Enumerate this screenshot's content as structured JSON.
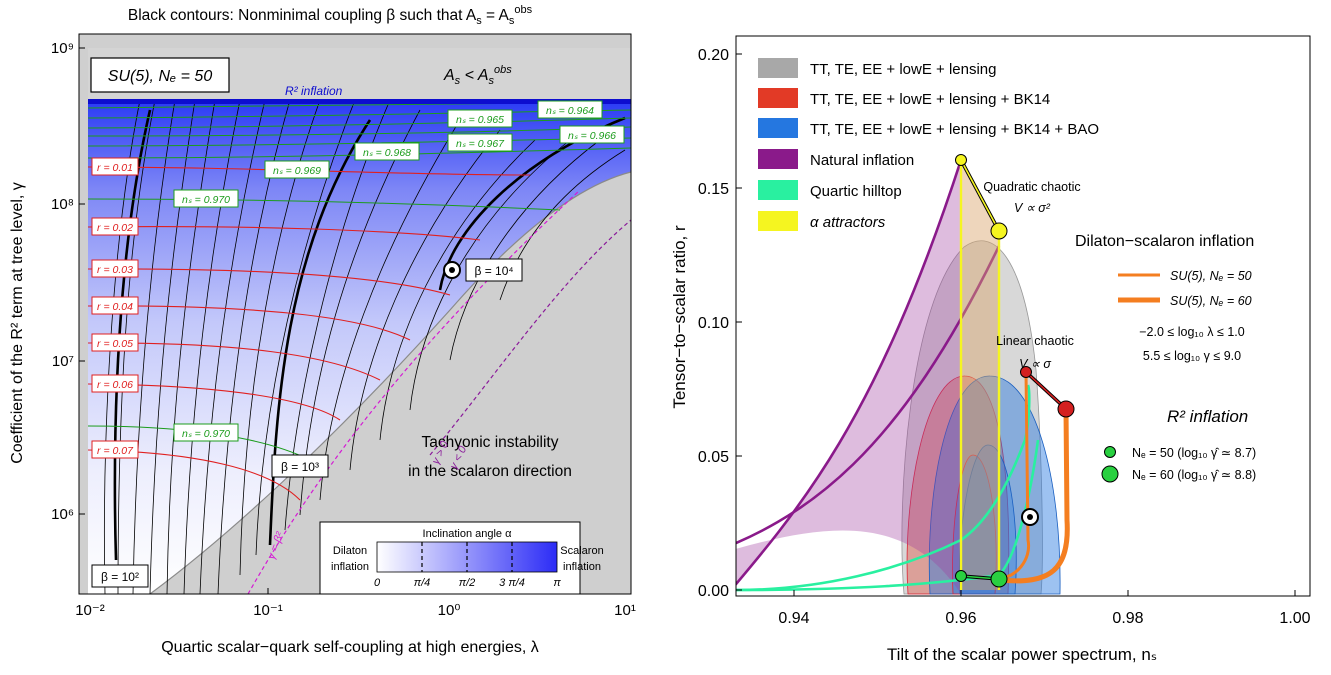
{
  "left": {
    "title": "Black contours: Nonminimal coupling β such that A",
    "title_sub": "s",
    "title_eq": " = A",
    "title_sub2": "s",
    "title_sup": "obs",
    "xlabel": "Quartic scalar−quark self-coupling at high energies, λ",
    "ylabel": "Coefficient of the  R² term  at tree level,  γ",
    "xticks": [
      "10⁻²",
      "10⁻¹",
      "10⁰",
      "10¹"
    ],
    "yticks": [
      "10⁶",
      "10⁷",
      "10⁸",
      "10⁹"
    ],
    "model_box": "SU(5), Nₑ = 50",
    "region_top": "A",
    "region_top_rest": " < A",
    "region_top_sup": "obs",
    "r2_label": "R² inflation",
    "tachyon_line1": "Tachyonic instability",
    "tachyon_line2": "in the scalaron direction",
    "beta_labels": [
      "β = 10²",
      "β = 10³",
      "β = 10⁴"
    ],
    "r_labels": [
      "r = 0.01",
      "r = 0.02",
      "r = 0.03",
      "r = 0.04",
      "r = 0.05",
      "r = 0.06",
      "r = 0.07"
    ],
    "ns_labels": [
      "nₛ = 0.964",
      "nₛ = 0.965",
      "nₛ = 0.966",
      "nₛ = 0.967",
      "nₛ = 0.968",
      "nₛ = 0.969",
      "nₛ = 0.970",
      "nₛ = 0.970"
    ],
    "gamma_pos": "γ > 0",
    "gamma_neg": "γ < 0",
    "gamma_beta": "γ = β²",
    "colorbar": {
      "title": "Inclination angle α",
      "left_line1": "Dilaton",
      "left_line2": "inflation",
      "right_line1": "Scalaron",
      "right_line2": "inflation",
      "ticks": [
        "0",
        "π/4",
        "π/2",
        "3 π/4",
        "π"
      ]
    }
  },
  "right": {
    "xlabel": "Tilt of the scalar power spectrum,  nₛ",
    "ylabel": "Tensor−to−scalar  ratio,  r",
    "xticks": [
      "0.94",
      "0.96",
      "0.98",
      "1.00"
    ],
    "yticks": [
      "0.00",
      "0.05",
      "0.10",
      "0.15",
      "0.20"
    ],
    "legend": [
      {
        "label": "TT, TE, EE + lowE + lensing",
        "color": "#a8a8a8"
      },
      {
        "label": "TT, TE, EE + lowE + lensing + BK14",
        "color": "#e23a26"
      },
      {
        "label": "TT, TE, EE + lowE + lensing + BK14 + BAO",
        "color": "#2577e0"
      },
      {
        "label": "Natural inflation",
        "color": "#8a1a8a"
      },
      {
        "label": "Quartic hilltop",
        "color": "#29f0a0"
      },
      {
        "label": "α attractors",
        "color": "#f5f520"
      }
    ],
    "quad_title": "Quadratic chaotic",
    "quad_formula": "V ∝ σ²",
    "linear_title": "Linear chaotic",
    "linear_formula": "V ∝ σ",
    "dilaton_title": "Dilaton−scalaron inflation",
    "dilaton_legend": [
      "SU(5), Nₑ = 50",
      "SU(5), Nₑ = 60"
    ],
    "range1": "−2.0 ≤ log₁₀ λ ≤ 1.0",
    "range2": "5.5 ≤ log₁₀ γ ≤ 9.0",
    "r2_title": "R² inflation",
    "r2_legend": [
      "Nₑ = 50  (log₁₀ γ̂ ≃ 8.7)",
      "Nₑ = 60  (log₁₀ γ̂ ≃ 8.8)"
    ]
  },
  "chart_data": [
    {
      "type": "contour",
      "title": "Black contours: Nonminimal coupling β such that A_s = A_s^obs",
      "xlabel": "Quartic scalar−quark self-coupling at high energies, λ",
      "ylabel": "Coefficient of the R² term at tree level, γ",
      "xscale": "log",
      "yscale": "log",
      "xlim": [
        0.01,
        10
      ],
      "ylim": [
        300000,
        1000000000
      ],
      "r2_inflation_gamma": 480000000,
      "beta_contours": [
        100,
        1000,
        10000
      ],
      "r_contours": [
        0.01,
        0.02,
        0.03,
        0.04,
        0.05,
        0.06,
        0.07
      ],
      "ns_contours": [
        0.964,
        0.965,
        0.966,
        0.967,
        0.968,
        0.969,
        0.97
      ],
      "highlight_point": {
        "lambda": 1.0,
        "gamma": 37000000
      }
    },
    {
      "type": "area",
      "xlabel": "Tilt of the scalar power spectrum, nₛ",
      "ylabel": "Tensor−to−scalar ratio, r",
      "xlim": [
        0.935,
        1.005
      ],
      "ylim": [
        0,
        0.205
      ],
      "points": {
        "quadratic_chaotic": [
          [
            0.96,
            0.158
          ],
          [
            0.9667,
            0.133
          ]
        ],
        "linear_chaotic": [
          [
            0.97,
            0.08
          ],
          [
            0.975,
            0.067
          ]
        ],
        "r2_inflation": [
          [
            0.96,
            0.0045
          ],
          [
            0.9667,
            0.0033
          ]
        ],
        "dilaton_marker": [
          0.9705,
          0.026
        ]
      },
      "series": [
        {
          "name": "TT, TE, EE + lowE + lensing",
          "ns_center": 0.9675,
          "r_max": 0.127
        },
        {
          "name": "TT, TE, EE + lowE + lensing + BK14",
          "ns_center": 0.9665,
          "r_max": 0.079
        },
        {
          "name": "TT, TE, EE + lowE + lensing + BK14 + BAO",
          "ns_center": 0.968,
          "r_max": 0.079
        },
        {
          "name": "Natural inflation"
        },
        {
          "name": "Quartic hilltop"
        },
        {
          "name": "α attractors"
        }
      ]
    }
  ]
}
